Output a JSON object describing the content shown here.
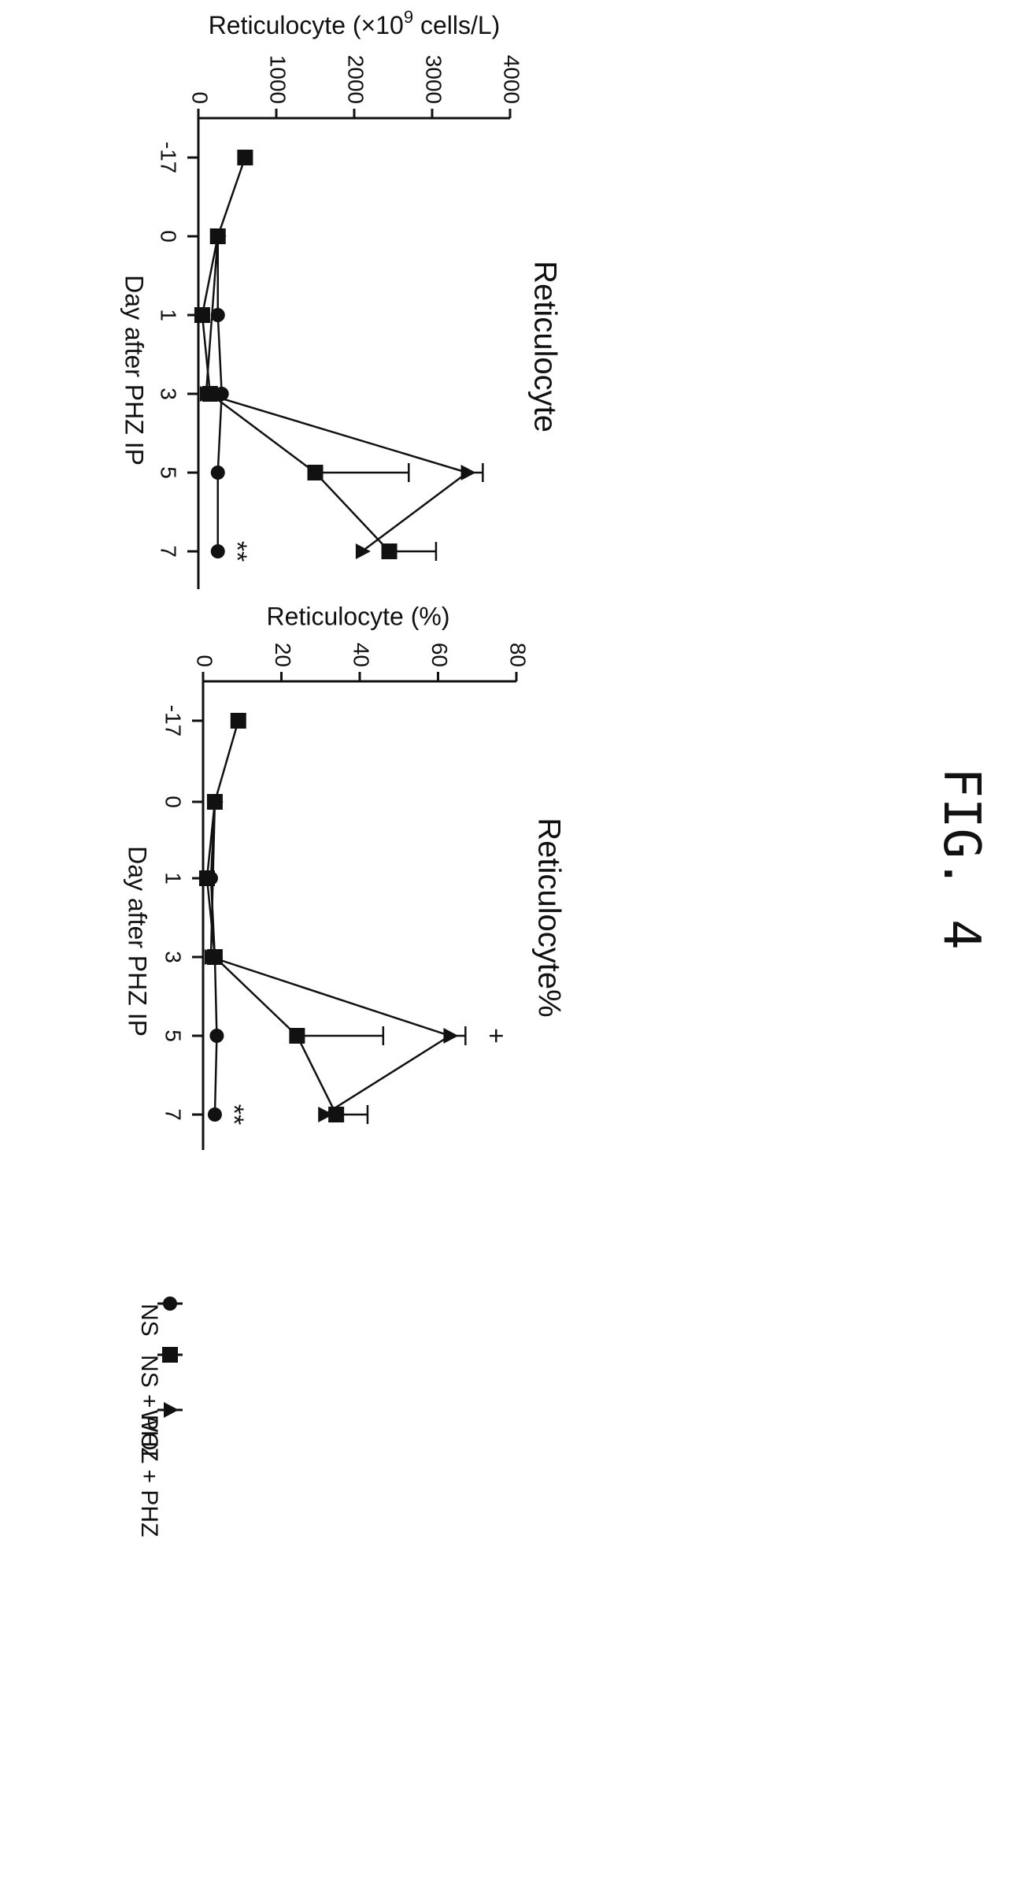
{
  "figure_label": "FIG. 4",
  "legend": {
    "items": [
      {
        "label": "NS",
        "marker": "circle"
      },
      {
        "label": "NS + PHZ",
        "marker": "square"
      },
      {
        "label": "WOL + PHZ",
        "marker": "triangle"
      }
    ]
  },
  "chart_data": [
    {
      "type": "line",
      "title": "Reticulocyte",
      "xlabel": "Day after PHZ IP",
      "ylabel_main": "Reticulocyte (×10",
      "ylabel_sup": "9",
      "ylabel_tail": " cells/L)",
      "categories": [
        "-17",
        "0",
        "1",
        "3",
        "5",
        "7"
      ],
      "ylim": [
        0,
        4000
      ],
      "yticks": [
        "0",
        "1000",
        "2000",
        "3000",
        "4000"
      ],
      "ytick_values": [
        0,
        1000,
        2000,
        3000,
        4000
      ],
      "orientation": "rotated-90-clockwise",
      "series": [
        {
          "name": "NS",
          "marker": "circle",
          "values": [
            null,
            250,
            250,
            300,
            250,
            250
          ],
          "errors": [
            null,
            null,
            null,
            null,
            null,
            null
          ]
        },
        {
          "name": "NS + PHZ",
          "marker": "square",
          "values": [
            600,
            250,
            50,
            150,
            1500,
            2450
          ],
          "errors": [
            null,
            null,
            null,
            null,
            1200,
            600
          ]
        },
        {
          "name": "WOL + PHZ",
          "marker": "triangle",
          "values": [
            null,
            250,
            null,
            100,
            3450,
            2100
          ],
          "errors": [
            null,
            null,
            null,
            null,
            200,
            null
          ]
        }
      ],
      "annotations": [
        {
          "category": "7",
          "text": "**"
        }
      ]
    },
    {
      "type": "line",
      "title": "Reticulocyte%",
      "xlabel": "Day after PHZ IP",
      "ylabel": "Reticulocyte (%)",
      "categories": [
        "-17",
        "0",
        "1",
        "3",
        "5",
        "7"
      ],
      "ylim": [
        0,
        80
      ],
      "yticks": [
        "0",
        "20",
        "40",
        "60",
        "80"
      ],
      "ytick_values": [
        0,
        20,
        40,
        60,
        80
      ],
      "orientation": "rotated-90-clockwise",
      "series": [
        {
          "name": "NS",
          "marker": "circle",
          "values": [
            null,
            3,
            2,
            3,
            3.5,
            3
          ],
          "errors": [
            null,
            null,
            null,
            null,
            null,
            null
          ]
        },
        {
          "name": "NS + PHZ",
          "marker": "square",
          "values": [
            9,
            3,
            1,
            3,
            24,
            34
          ],
          "errors": [
            null,
            null,
            null,
            null,
            22,
            8
          ]
        },
        {
          "name": "WOL + PHZ",
          "marker": "triangle",
          "values": [
            null,
            3,
            null,
            2,
            63,
            31
          ],
          "errors": [
            null,
            null,
            null,
            null,
            4,
            null
          ]
        }
      ],
      "annotations": [
        {
          "category": "5",
          "text": "+"
        },
        {
          "category": "7",
          "text": "**"
        }
      ]
    }
  ]
}
